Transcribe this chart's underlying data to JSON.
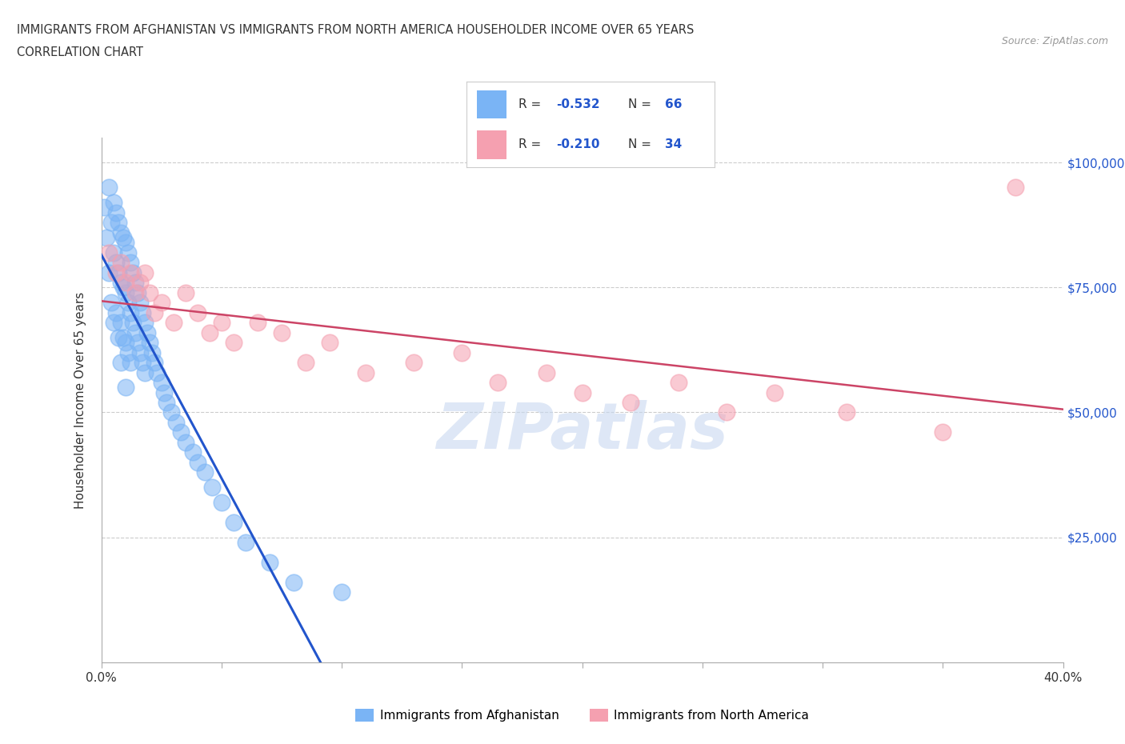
{
  "title_line1": "IMMIGRANTS FROM AFGHANISTAN VS IMMIGRANTS FROM NORTH AMERICA HOUSEHOLDER INCOME OVER 65 YEARS",
  "title_line2": "CORRELATION CHART",
  "source_text": "Source: ZipAtlas.com",
  "ylabel": "Householder Income Over 65 years",
  "x_min": 0.0,
  "x_max": 0.4,
  "y_min": 0,
  "y_max": 100000,
  "afghanistan_color": "#7ab4f5",
  "north_america_color": "#f5a0b0",
  "afghanistan_line_color": "#2255cc",
  "north_america_line_color": "#cc4466",
  "watermark_color": "#c8d8f0",
  "R1": -0.532,
  "N1": 66,
  "R2": -0.21,
  "N2": 34,
  "afghanistan_x": [
    0.001,
    0.002,
    0.003,
    0.003,
    0.004,
    0.004,
    0.005,
    0.005,
    0.005,
    0.006,
    0.006,
    0.006,
    0.007,
    0.007,
    0.007,
    0.008,
    0.008,
    0.008,
    0.008,
    0.009,
    0.009,
    0.009,
    0.01,
    0.01,
    0.01,
    0.01,
    0.011,
    0.011,
    0.011,
    0.012,
    0.012,
    0.012,
    0.013,
    0.013,
    0.014,
    0.014,
    0.015,
    0.015,
    0.016,
    0.016,
    0.017,
    0.017,
    0.018,
    0.018,
    0.019,
    0.02,
    0.021,
    0.022,
    0.023,
    0.025,
    0.026,
    0.027,
    0.029,
    0.031,
    0.033,
    0.035,
    0.038,
    0.04,
    0.043,
    0.046,
    0.05,
    0.055,
    0.06,
    0.07,
    0.08,
    0.1
  ],
  "afghanistan_y": [
    91000,
    85000,
    95000,
    78000,
    88000,
    72000,
    92000,
    82000,
    68000,
    90000,
    80000,
    70000,
    88000,
    78000,
    65000,
    86000,
    76000,
    68000,
    60000,
    85000,
    75000,
    65000,
    84000,
    74000,
    64000,
    55000,
    82000,
    72000,
    62000,
    80000,
    70000,
    60000,
    78000,
    68000,
    76000,
    66000,
    74000,
    64000,
    72000,
    62000,
    70000,
    60000,
    68000,
    58000,
    66000,
    64000,
    62000,
    60000,
    58000,
    56000,
    54000,
    52000,
    50000,
    48000,
    46000,
    44000,
    42000,
    40000,
    38000,
    35000,
    32000,
    28000,
    24000,
    20000,
    16000,
    14000
  ],
  "north_america_x": [
    0.003,
    0.006,
    0.008,
    0.01,
    0.012,
    0.014,
    0.016,
    0.018,
    0.02,
    0.022,
    0.025,
    0.03,
    0.035,
    0.04,
    0.045,
    0.05,
    0.055,
    0.065,
    0.075,
    0.085,
    0.095,
    0.11,
    0.13,
    0.15,
    0.165,
    0.185,
    0.2,
    0.22,
    0.24,
    0.26,
    0.28,
    0.31,
    0.35,
    0.38
  ],
  "north_america_y": [
    82000,
    78000,
    80000,
    76000,
    78000,
    74000,
    76000,
    78000,
    74000,
    70000,
    72000,
    68000,
    74000,
    70000,
    66000,
    68000,
    64000,
    68000,
    66000,
    60000,
    64000,
    58000,
    60000,
    62000,
    56000,
    58000,
    54000,
    52000,
    56000,
    50000,
    54000,
    50000,
    46000,
    95000
  ]
}
